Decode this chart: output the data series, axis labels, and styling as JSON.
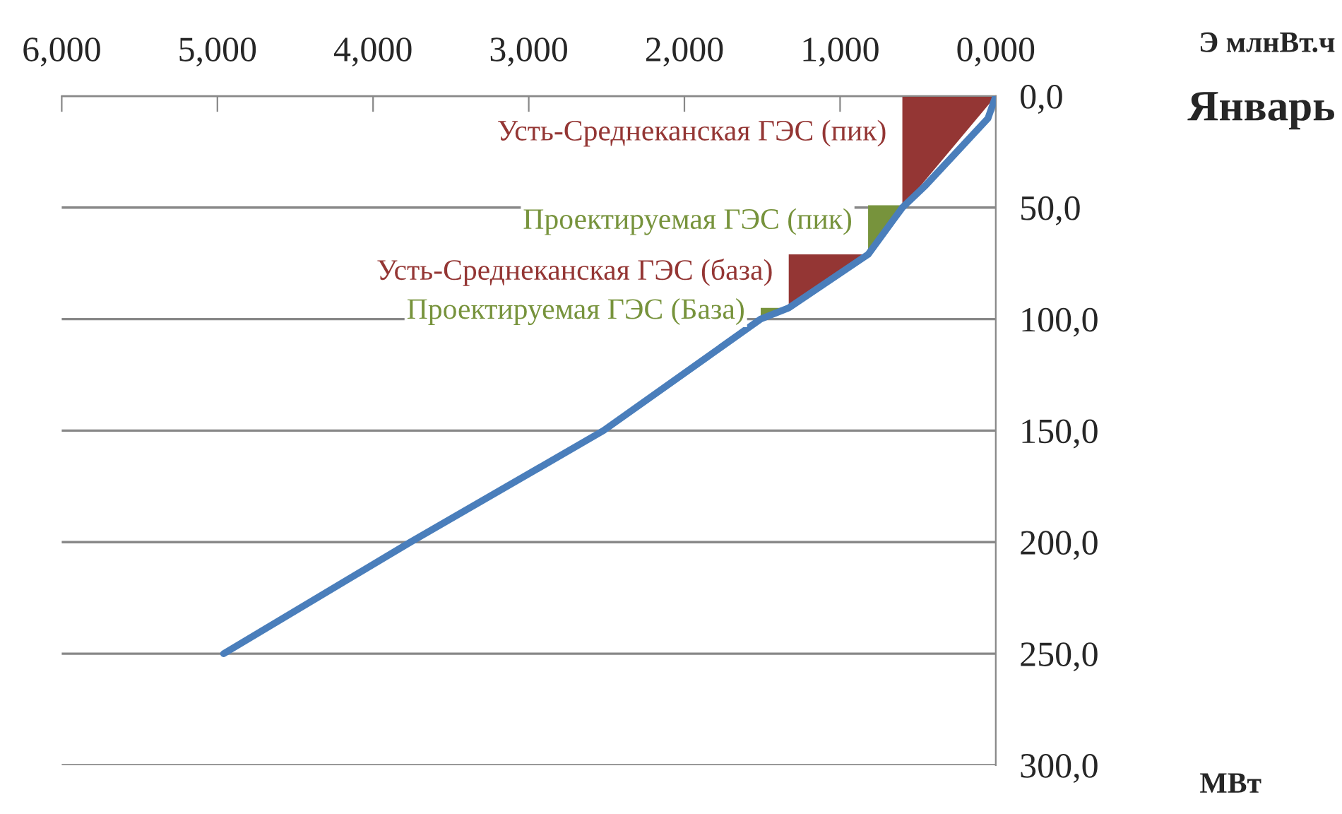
{
  "chart_data": {
    "type": "line",
    "title": "Январь",
    "xlabel": "Э млнВт.ч",
    "ylabel": "МВт",
    "xlim": [
      6,
      0
    ],
    "ylim": [
      300,
      0
    ],
    "xticks": [
      {
        "value": 6,
        "label": "6,000"
      },
      {
        "value": 5,
        "label": "5,000"
      },
      {
        "value": 4,
        "label": "4,000"
      },
      {
        "value": 3,
        "label": "3,000"
      },
      {
        "value": 2,
        "label": "2,000"
      },
      {
        "value": 1,
        "label": "1,000"
      },
      {
        "value": 0,
        "label": "0,000"
      }
    ],
    "yticks": [
      {
        "value": 0,
        "label": "0,0"
      },
      {
        "value": 50,
        "label": "50,0"
      },
      {
        "value": 100,
        "label": "100,0"
      },
      {
        "value": 150,
        "label": "150,0"
      },
      {
        "value": 200,
        "label": "200,0"
      },
      {
        "value": 250,
        "label": "250,0"
      },
      {
        "value": 300,
        "label": "300,0"
      }
    ],
    "grid": "y",
    "series": [
      {
        "type": "area",
        "name": "Усть-Среднеканская ГЭС (пик)",
        "color": "#943634",
        "x": [
          0,
          0.6,
          0.6
        ],
        "values": [
          0,
          0,
          50
        ]
      },
      {
        "type": "area",
        "name": "Проектируемая ГЭС (пик)",
        "color": "#77933c",
        "x": [
          0.6,
          0.82,
          0.82
        ],
        "values": [
          49,
          49,
          71
        ]
      },
      {
        "type": "area",
        "name": "Усть-Среднеканская ГЭС (база)",
        "color": "#943634",
        "x": [
          0.82,
          1.33,
          1.33
        ],
        "values": [
          71,
          71,
          95
        ]
      },
      {
        "type": "area",
        "name": "Проектируемая ГЭС (База)",
        "color": "#77933c",
        "x": [
          1.33,
          1.51,
          1.51
        ],
        "values": [
          95,
          95,
          100
        ]
      },
      {
        "color": "#4a7ebb",
        "x": [
          0,
          0.05,
          0.25,
          0.45,
          0.6,
          0.82,
          1.33,
          1.51,
          2.52,
          3.76,
          4.96
        ],
        "values": [
          0,
          10,
          25,
          40,
          50,
          71,
          95,
          100,
          150,
          200,
          250
        ]
      }
    ]
  }
}
